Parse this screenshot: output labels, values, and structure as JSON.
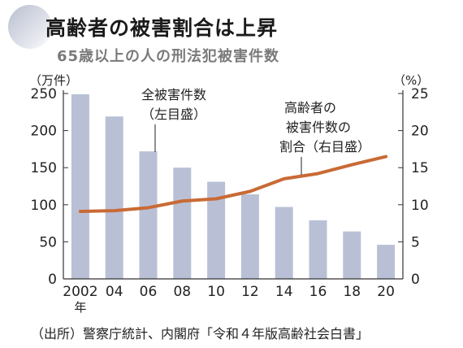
{
  "header": {
    "title": "高齢者の被害割合は上昇",
    "subtitle": "65歳以上の人の刑法犯被害件数"
  },
  "source": "（出所）警察庁統計、内閣府「令和４年版高齢社会白書」",
  "colors": {
    "bar": "#b9c0d6",
    "line": "#c96a35",
    "text": "#222222"
  },
  "chart_data": {
    "type": "bar",
    "categories": [
      "2002",
      "04",
      "06",
      "08",
      "10",
      "12",
      "14",
      "16",
      "18",
      "20"
    ],
    "x_unit": "年",
    "left_axis": {
      "unit": "（万件）",
      "ticks": [
        0,
        50,
        100,
        150,
        200,
        250
      ],
      "lim": [
        0,
        250
      ]
    },
    "right_axis": {
      "unit": "（%）",
      "ticks": [
        0,
        5,
        10,
        15,
        20,
        25
      ],
      "lim": [
        0,
        25
      ]
    },
    "series": [
      {
        "name": "全被害件数（左目盛）",
        "kind": "bar",
        "axis": "left",
        "values": [
          249,
          219,
          172,
          150,
          131,
          114,
          97,
          79,
          64,
          46
        ]
      },
      {
        "name": "高齢者の被害件数の割合（右目盛）",
        "kind": "line",
        "axis": "right",
        "values": [
          9.1,
          9.2,
          9.6,
          10.5,
          10.8,
          11.8,
          13.5,
          14.2,
          15.4,
          16.5
        ]
      }
    ],
    "annotations": [
      {
        "lines": [
          "全被害件数",
          "（左目盛）"
        ]
      },
      {
        "lines": [
          "高齢者の",
          "被害件数の",
          "割合（右目盛）"
        ]
      }
    ]
  }
}
